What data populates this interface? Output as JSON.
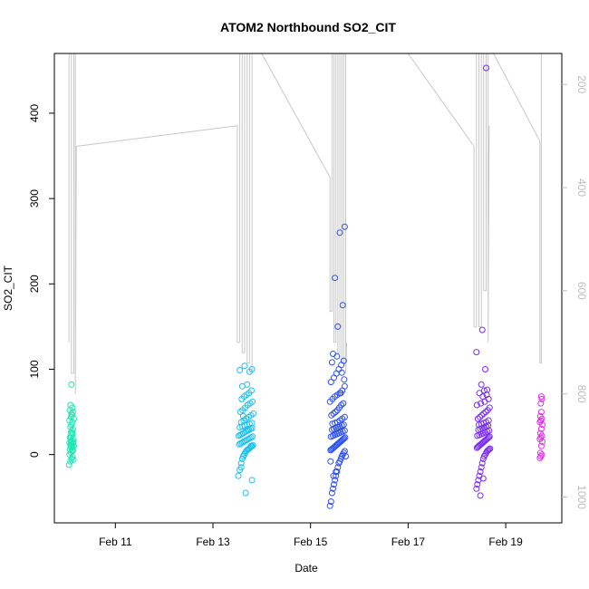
{
  "chart_data": {
    "type": "scatter",
    "title": "ATOM2 Northbound SO2_CIT",
    "xlabel": "Date",
    "ylabel": "SO2_CIT",
    "x_ticks": [
      "Feb 11",
      "Feb 13",
      "Feb 15",
      "Feb 17",
      "Feb 19"
    ],
    "x_tick_days": [
      11,
      13,
      15,
      17,
      19
    ],
    "xlim_days": [
      9.75,
      20.15
    ],
    "ylim": [
      -80,
      470
    ],
    "y_ticks": [
      0,
      100,
      200,
      300,
      400
    ],
    "y2_label": "",
    "y2_ticks": [
      200,
      400,
      600,
      800,
      1000
    ],
    "y2_lim": [
      1050,
      140
    ],
    "y2_reversed": true,
    "grid": false,
    "legend": "none",
    "colors": {
      "flight1": "#1ee6b4",
      "flight2": "#1ec0ee",
      "flight3": "#2e50f0",
      "flight4": "#7a2ef0",
      "flight5": "#e030e8",
      "altitude_line": "#c8c8c8"
    },
    "series": [
      {
        "color_key": "flight1",
        "x": [
          10.05,
          10.08,
          10.1,
          10.12,
          10.14,
          10.06,
          10.09,
          10.11,
          10.13,
          10.07,
          10.1,
          10.12,
          10.15,
          10.08,
          10.1,
          10.13,
          10.06,
          10.09,
          10.11,
          10.14,
          10.07,
          10.1,
          10.12,
          10.09,
          10.11,
          10.13,
          10.08,
          10.1,
          10.12,
          10.06,
          10.15,
          10.09,
          10.11,
          10.1,
          10.13,
          10.07,
          10.12,
          10.08,
          10.1,
          10.14,
          10.11,
          10.09,
          10.12,
          10.1
        ],
        "y": [
          -12,
          -8,
          -5,
          -3,
          -6,
          0,
          2,
          4,
          5,
          6,
          8,
          9,
          10,
          11,
          12,
          13,
          14,
          15,
          16,
          18,
          20,
          22,
          24,
          26,
          28,
          30,
          32,
          35,
          38,
          40,
          42,
          44,
          46,
          48,
          50,
          52,
          55,
          58,
          10,
          15,
          5,
          20,
          25,
          82
        ]
      },
      {
        "color_key": "flight2",
        "x": [
          13.52,
          13.55,
          13.58,
          13.6,
          13.62,
          13.64,
          13.66,
          13.68,
          13.7,
          13.72,
          13.74,
          13.76,
          13.78,
          13.8,
          13.82,
          13.54,
          13.57,
          13.6,
          13.63,
          13.66,
          13.69,
          13.72,
          13.75,
          13.78,
          13.81,
          13.53,
          13.56,
          13.59,
          13.62,
          13.65,
          13.68,
          13.71,
          13.74,
          13.77,
          13.8,
          13.55,
          13.6,
          13.65,
          13.7,
          13.75,
          13.8,
          13.58,
          13.63,
          13.68,
          13.73,
          13.78,
          13.83,
          13.56,
          13.61,
          13.66,
          13.71,
          13.76,
          13.81,
          13.59,
          13.64,
          13.69,
          13.74,
          13.79,
          13.6,
          13.7,
          13.8,
          13.65,
          13.75,
          13.55,
          13.62,
          13.72,
          13.78,
          13.67,
          13.8,
          13.58
        ],
        "y": [
          -25,
          -18,
          -10,
          -5,
          -2,
          0,
          2,
          4,
          5,
          6,
          7,
          8,
          9,
          10,
          11,
          12,
          13,
          14,
          15,
          16,
          17,
          18,
          19,
          20,
          21,
          22,
          23,
          24,
          25,
          26,
          27,
          28,
          29,
          30,
          31,
          32,
          33,
          34,
          35,
          36,
          37,
          38,
          40,
          42,
          44,
          46,
          48,
          50,
          52,
          55,
          58,
          60,
          62,
          65,
          68,
          70,
          72,
          75,
          80,
          82,
          100,
          104,
          97,
          99,
          45,
          30,
          10,
          -45,
          -30,
          -15
        ]
      },
      {
        "color_key": "flight3",
        "x": [
          15.4,
          15.42,
          15.44,
          15.46,
          15.48,
          15.5,
          15.52,
          15.54,
          15.56,
          15.58,
          15.6,
          15.62,
          15.64,
          15.66,
          15.68,
          15.7,
          15.41,
          15.43,
          15.45,
          15.47,
          15.49,
          15.51,
          15.53,
          15.55,
          15.57,
          15.59,
          15.61,
          15.63,
          15.65,
          15.67,
          15.69,
          15.71,
          15.42,
          15.46,
          15.5,
          15.54,
          15.58,
          15.62,
          15.66,
          15.7,
          15.44,
          15.48,
          15.52,
          15.56,
          15.6,
          15.64,
          15.68,
          15.45,
          15.5,
          15.55,
          15.6,
          15.65,
          15.7,
          15.43,
          15.47,
          15.51,
          15.55,
          15.59,
          15.63,
          15.67,
          15.4,
          15.45,
          15.5,
          15.55,
          15.6,
          15.65,
          15.7,
          15.42,
          15.48,
          15.53,
          15.58,
          15.63,
          15.68,
          15.46,
          15.56,
          15.66,
          15.5,
          15.6,
          15.7,
          15.44,
          15.54,
          15.64,
          15.62,
          15.47,
          15.69,
          15.41,
          15.52,
          15.72
        ],
        "y": [
          -60,
          -55,
          -45,
          -40,
          -35,
          -30,
          -25,
          -20,
          -15,
          -10,
          -8,
          -5,
          -2,
          0,
          2,
          4,
          5,
          6,
          7,
          8,
          9,
          10,
          11,
          12,
          13,
          14,
          15,
          16,
          17,
          18,
          19,
          20,
          21,
          22,
          23,
          24,
          25,
          26,
          27,
          28,
          29,
          30,
          31,
          32,
          33,
          34,
          35,
          36,
          37,
          38,
          40,
          42,
          44,
          46,
          48,
          50,
          52,
          55,
          58,
          60,
          62,
          65,
          68,
          70,
          72,
          75,
          80,
          85,
          90,
          95,
          100,
          105,
          110,
          118,
          150,
          175,
          207,
          260,
          267,
          108,
          115,
          96,
          72,
          -25,
          88,
          -8,
          -20,
          -2
        ]
      },
      {
        "color_key": "flight4",
        "x": [
          18.4,
          18.42,
          18.44,
          18.46,
          18.48,
          18.5,
          18.52,
          18.54,
          18.56,
          18.58,
          18.6,
          18.62,
          18.64,
          18.66,
          18.68,
          18.41,
          18.43,
          18.45,
          18.47,
          18.49,
          18.51,
          18.53,
          18.55,
          18.57,
          18.59,
          18.61,
          18.63,
          18.65,
          18.67,
          18.42,
          18.46,
          18.5,
          18.54,
          18.58,
          18.62,
          18.66,
          18.44,
          18.48,
          18.52,
          18.56,
          18.6,
          18.64,
          18.45,
          18.5,
          18.55,
          18.6,
          18.65,
          18.43,
          18.47,
          18.51,
          18.55,
          18.59,
          18.63,
          18.67,
          18.41,
          18.49,
          18.57,
          18.65,
          18.53,
          18.61,
          18.46,
          18.56,
          18.62,
          18.5,
          18.58,
          18.4,
          18.52,
          18.6,
          18.48,
          18.54
        ],
        "y": [
          -40,
          -35,
          -30,
          -25,
          -20,
          -15,
          -10,
          -5,
          -2,
          0,
          2,
          4,
          5,
          6,
          7,
          8,
          9,
          10,
          11,
          12,
          13,
          14,
          15,
          16,
          17,
          18,
          19,
          20,
          21,
          22,
          23,
          24,
          25,
          26,
          27,
          28,
          29,
          30,
          31,
          32,
          33,
          34,
          35,
          36,
          37,
          38,
          40,
          42,
          44,
          46,
          48,
          50,
          52,
          55,
          58,
          60,
          62,
          65,
          68,
          70,
          72,
          75,
          76,
          82,
          100,
          120,
          146,
          453,
          -48,
          -28
        ]
      },
      {
        "color_key": "flight5",
        "x": [
          19.7,
          19.72,
          19.74,
          19.71,
          19.73,
          19.75,
          19.7,
          19.72,
          19.74,
          19.71,
          19.73,
          19.75,
          19.7,
          19.72,
          19.74,
          19.71,
          19.73,
          19.72,
          19.74,
          19.73
        ],
        "y": [
          -4,
          -2,
          0,
          2,
          10,
          15,
          18,
          20,
          22,
          25,
          30,
          35,
          38,
          40,
          42,
          45,
          50,
          60,
          65,
          68
        ]
      }
    ],
    "altitude_segments": [
      [
        [
          10.05,
          700
        ],
        [
          10.05,
          140
        ],
        [
          10.1,
          140
        ],
        [
          10.1,
          760
        ],
        [
          10.15,
          760
        ],
        [
          10.15,
          140
        ],
        [
          10.18,
          140
        ],
        [
          10.18,
          800
        ],
        [
          10.2,
          320
        ],
        [
          13.5,
          280
        ],
        [
          13.5,
          700
        ],
        [
          13.55,
          700
        ],
        [
          13.55,
          140
        ],
        [
          13.6,
          140
        ],
        [
          13.6,
          720
        ],
        [
          13.65,
          720
        ],
        [
          13.65,
          140
        ],
        [
          13.7,
          140
        ],
        [
          13.7,
          740
        ],
        [
          13.75,
          740
        ],
        [
          13.75,
          140
        ],
        [
          13.8,
          140
        ],
        [
          13.8,
          760
        ]
      ],
      [
        [
          14.0,
          140
        ],
        [
          15.4,
          380
        ],
        [
          15.4,
          640
        ],
        [
          15.44,
          640
        ],
        [
          15.44,
          140
        ],
        [
          15.48,
          140
        ],
        [
          15.48,
          700
        ],
        [
          15.52,
          700
        ],
        [
          15.52,
          140
        ],
        [
          15.56,
          140
        ],
        [
          15.56,
          720
        ],
        [
          15.6,
          720
        ],
        [
          15.6,
          140
        ],
        [
          15.64,
          140
        ],
        [
          15.64,
          740
        ],
        [
          15.68,
          740
        ],
        [
          15.68,
          140
        ],
        [
          15.72,
          140
        ],
        [
          15.72,
          760
        ],
        [
          15.74,
          700
        ]
      ],
      [
        [
          17.0,
          140
        ],
        [
          18.35,
          320
        ],
        [
          18.35,
          670
        ],
        [
          18.4,
          670
        ],
        [
          18.4,
          140
        ],
        [
          18.45,
          140
        ],
        [
          18.45,
          670
        ],
        [
          18.5,
          670
        ],
        [
          18.5,
          140
        ],
        [
          18.55,
          140
        ],
        [
          18.55,
          600
        ],
        [
          18.6,
          600
        ],
        [
          18.6,
          140
        ],
        [
          18.64,
          140
        ],
        [
          18.64,
          700
        ],
        [
          18.66,
          280
        ]
      ],
      [
        [
          18.75,
          140
        ],
        [
          19.7,
          310
        ],
        [
          19.7,
          740
        ],
        [
          19.73,
          740
        ],
        [
          19.73,
          140
        ]
      ]
    ]
  }
}
